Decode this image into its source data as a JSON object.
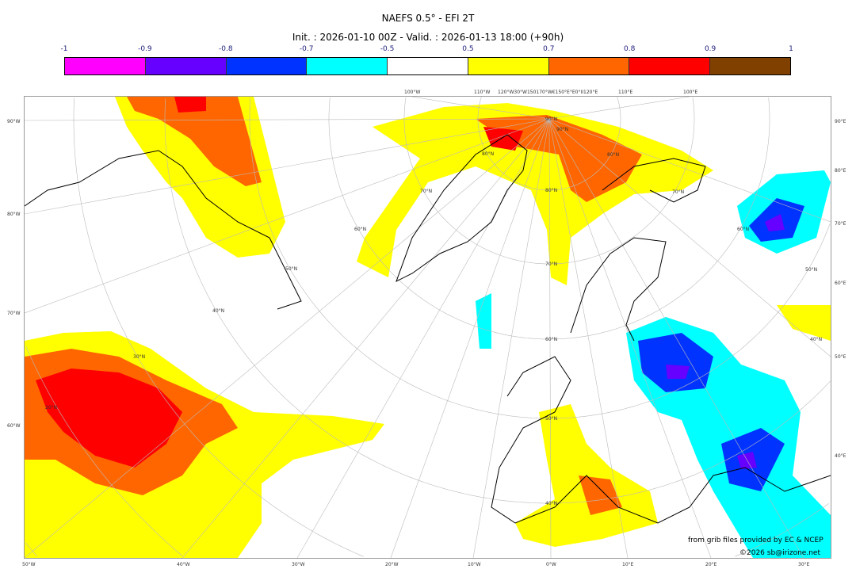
{
  "title": "NAEFS 0.5° - EFI 2T",
  "subtitle": "Init. : 2026-01-10 00Z - Valid. : 2026-01-13 18:00 (+90h)",
  "colorbar": {
    "ticks": [
      "-1",
      "-0.9",
      "-0.8",
      "-0.7",
      "-0.5",
      "0.5",
      "0.7",
      "0.8",
      "0.9",
      "1"
    ],
    "colors": [
      "#ff00ff",
      "#6600ff",
      "#0033ff",
      "#00ffff",
      "#ffffff",
      "#ffff00",
      "#ff6600",
      "#ff0000",
      "#804000"
    ]
  },
  "axes": {
    "left": [
      "90°W",
      "80°W",
      "70°W",
      "60°W"
    ],
    "right": [
      "90°E",
      "80°E",
      "70°E",
      "60°E",
      "50°E",
      "40°E"
    ],
    "bottom": [
      "50°W",
      "40°W",
      "30°W",
      "20°W",
      "10°W",
      "0°W",
      "10°E",
      "20°E",
      "30°E"
    ],
    "top": [
      "100°W",
      "110°W",
      "120°W30°W150170°W€150°E°E0°II120°E",
      "110°E",
      "100°E"
    ],
    "parallels": [
      "90°N",
      "80°N",
      "70°N",
      "60°N",
      "50°N",
      "40°N"
    ],
    "inner_meridians": [
      "80°N",
      "70°N",
      "60°N",
      "50°N",
      "40°N",
      "30°N",
      "20°N",
      "90°N",
      "80°N",
      "70°N",
      "60°N",
      "50°N",
      "40°N"
    ]
  },
  "credits": {
    "source": "from grib files provided by EC & NCEP",
    "copyright": "©2026 sb@irizone.net"
  }
}
